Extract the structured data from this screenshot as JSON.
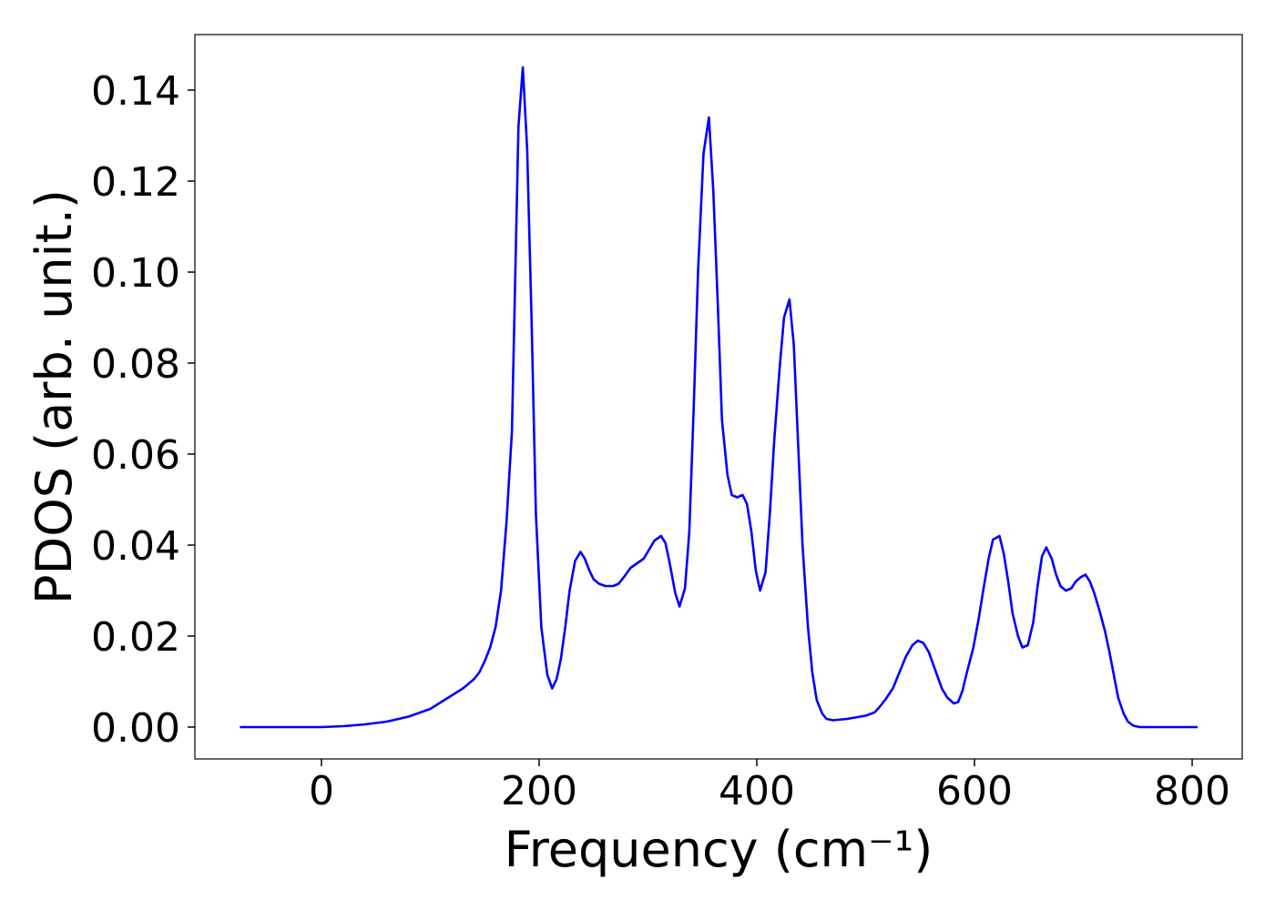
{
  "chart_data": {
    "type": "line",
    "xlabel": "Frequency (cm⁻¹)",
    "ylabel": "PDOS (arb. unit.)",
    "x": [
      -75,
      0,
      20,
      40,
      60,
      80,
      100,
      110,
      120,
      130,
      140,
      145,
      150,
      155,
      160,
      165,
      170,
      175,
      181,
      185,
      189,
      193,
      197,
      202,
      207.5,
      212,
      216,
      220,
      224,
      228,
      233,
      238,
      242,
      246,
      250,
      255,
      261,
      268,
      273,
      278,
      284,
      290,
      296,
      301,
      306,
      312,
      316,
      320,
      325,
      329,
      334,
      338,
      342,
      346,
      351,
      356,
      360,
      364,
      368,
      373,
      377,
      382,
      387,
      391,
      395,
      399,
      403,
      408,
      412,
      416,
      421,
      425,
      430,
      434,
      438,
      442,
      447,
      451,
      455,
      460,
      464,
      470,
      483,
      500,
      508,
      512,
      518,
      525,
      531,
      537,
      543,
      548,
      553,
      558,
      564,
      570,
      575,
      581,
      585,
      589,
      593,
      599,
      604,
      608,
      613,
      617,
      623,
      627,
      631,
      635,
      640,
      644,
      649,
      654,
      658,
      662,
      666,
      671,
      675,
      679,
      684,
      689,
      693,
      698,
      702,
      706,
      710,
      715,
      720,
      724,
      728,
      732,
      737,
      741,
      746,
      752,
      767,
      805
    ],
    "series": [
      {
        "name": "PDOS",
        "color": "#0000ff",
        "values": [
          0,
          0,
          0.0002,
          0.0006,
          0.0012,
          0.0023,
          0.004,
          0.0055,
          0.007,
          0.0085,
          0.0105,
          0.012,
          0.0145,
          0.0175,
          0.022,
          0.03,
          0.045,
          0.065,
          0.132,
          0.145,
          0.127,
          0.09,
          0.047,
          0.022,
          0.0115,
          0.0085,
          0.0105,
          0.015,
          0.022,
          0.03,
          0.0365,
          0.0385,
          0.037,
          0.0345,
          0.0325,
          0.0315,
          0.031,
          0.031,
          0.0315,
          0.033,
          0.035,
          0.036,
          0.037,
          0.039,
          0.041,
          0.042,
          0.0405,
          0.036,
          0.0295,
          0.0265,
          0.0305,
          0.043,
          0.07,
          0.1,
          0.126,
          0.134,
          0.118,
          0.094,
          0.0675,
          0.0555,
          0.051,
          0.0505,
          0.051,
          0.049,
          0.043,
          0.0345,
          0.03,
          0.034,
          0.047,
          0.063,
          0.079,
          0.09,
          0.094,
          0.084,
          0.062,
          0.04,
          0.022,
          0.012,
          0.006,
          0.003,
          0.0018,
          0.0015,
          0.0018,
          0.0025,
          0.0032,
          0.0042,
          0.006,
          0.0085,
          0.012,
          0.0155,
          0.018,
          0.019,
          0.0185,
          0.0165,
          0.0125,
          0.0085,
          0.0065,
          0.0052,
          0.0055,
          0.008,
          0.012,
          0.0175,
          0.024,
          0.03,
          0.037,
          0.0412,
          0.042,
          0.038,
          0.032,
          0.025,
          0.02,
          0.0175,
          0.018,
          0.023,
          0.031,
          0.0375,
          0.0395,
          0.037,
          0.0335,
          0.031,
          0.03,
          0.0305,
          0.032,
          0.033,
          0.0335,
          0.032,
          0.0295,
          0.0255,
          0.021,
          0.0165,
          0.0115,
          0.0065,
          0.003,
          0.0012,
          0.0003,
          0,
          0,
          0
        ]
      }
    ],
    "xlim": [
      -116.3,
      846
    ],
    "ylim": [
      -0.007,
      0.1522
    ],
    "xticks": [
      0,
      200,
      400,
      600,
      800
    ],
    "yticks": [
      {
        "value": 0,
        "label": "0.00"
      },
      {
        "value": 0.02,
        "label": "0.02"
      },
      {
        "value": 0.04,
        "label": "0.04"
      },
      {
        "value": 0.06,
        "label": "0.06"
      },
      {
        "value": 0.08,
        "label": "0.08"
      },
      {
        "value": 0.1,
        "label": "0.10"
      },
      {
        "value": 0.12,
        "label": "0.12"
      },
      {
        "value": 0.14,
        "label": "0.14"
      }
    ],
    "grid": false
  }
}
